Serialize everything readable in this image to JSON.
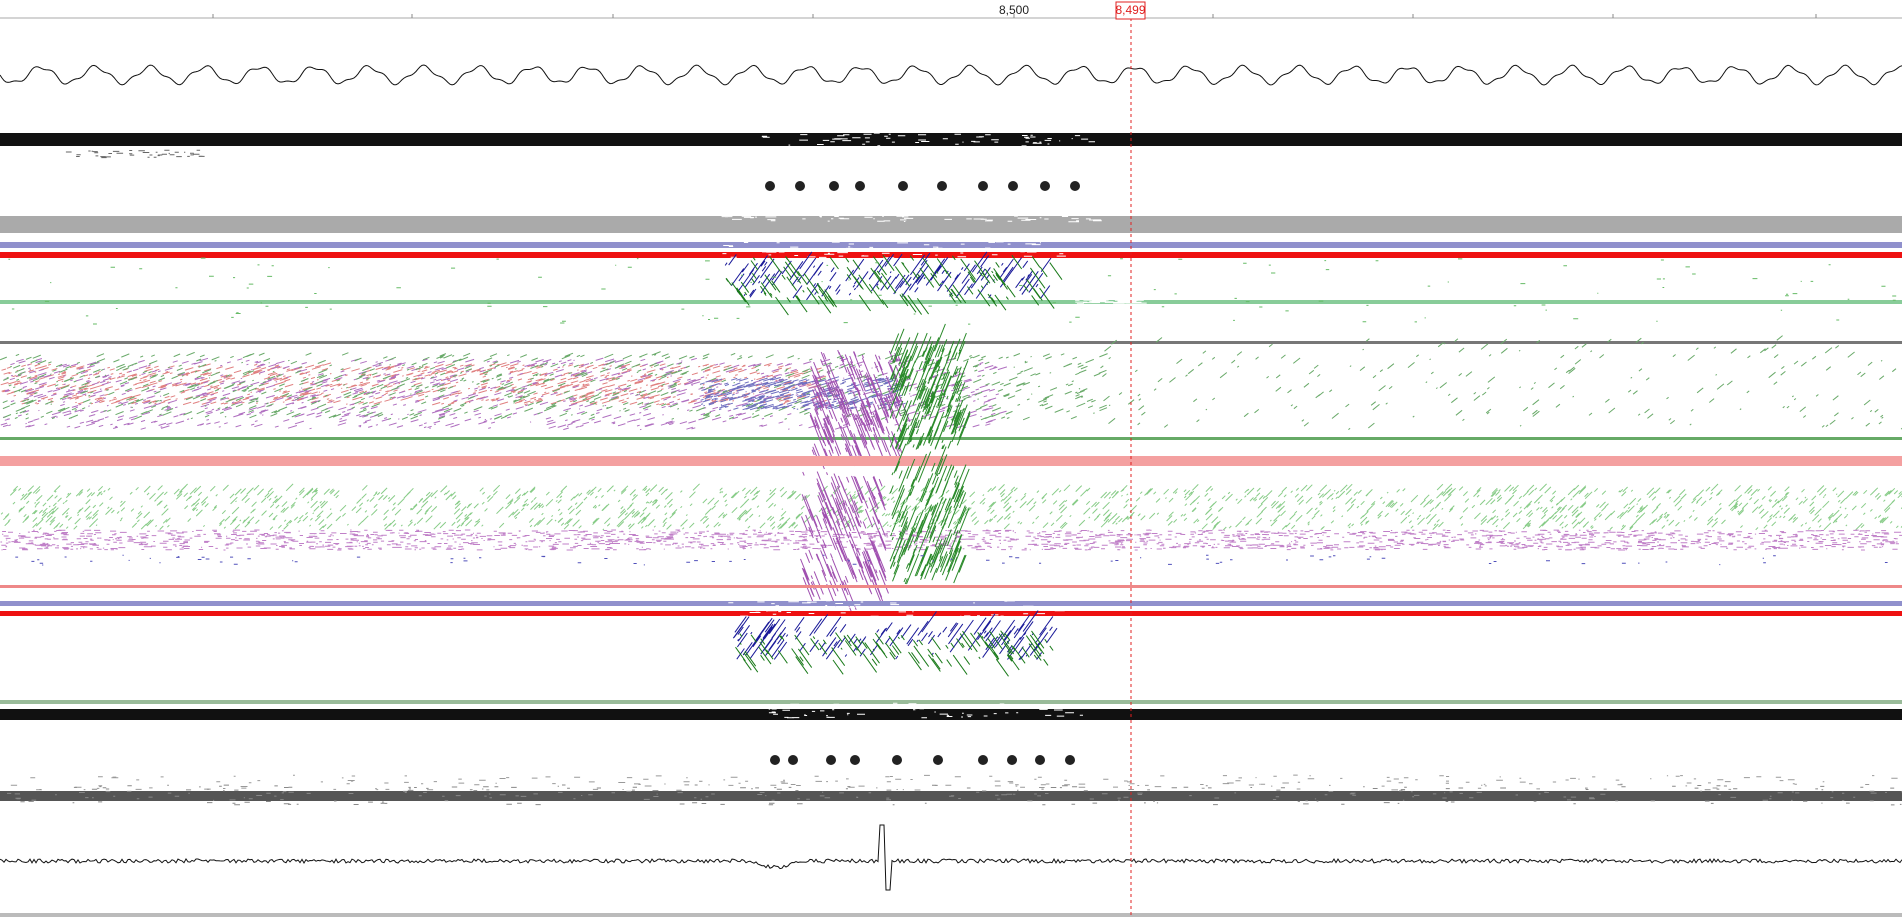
{
  "ruler": {
    "label": "8,500"
  },
  "cursor": {
    "label": "8,499"
  }
}
